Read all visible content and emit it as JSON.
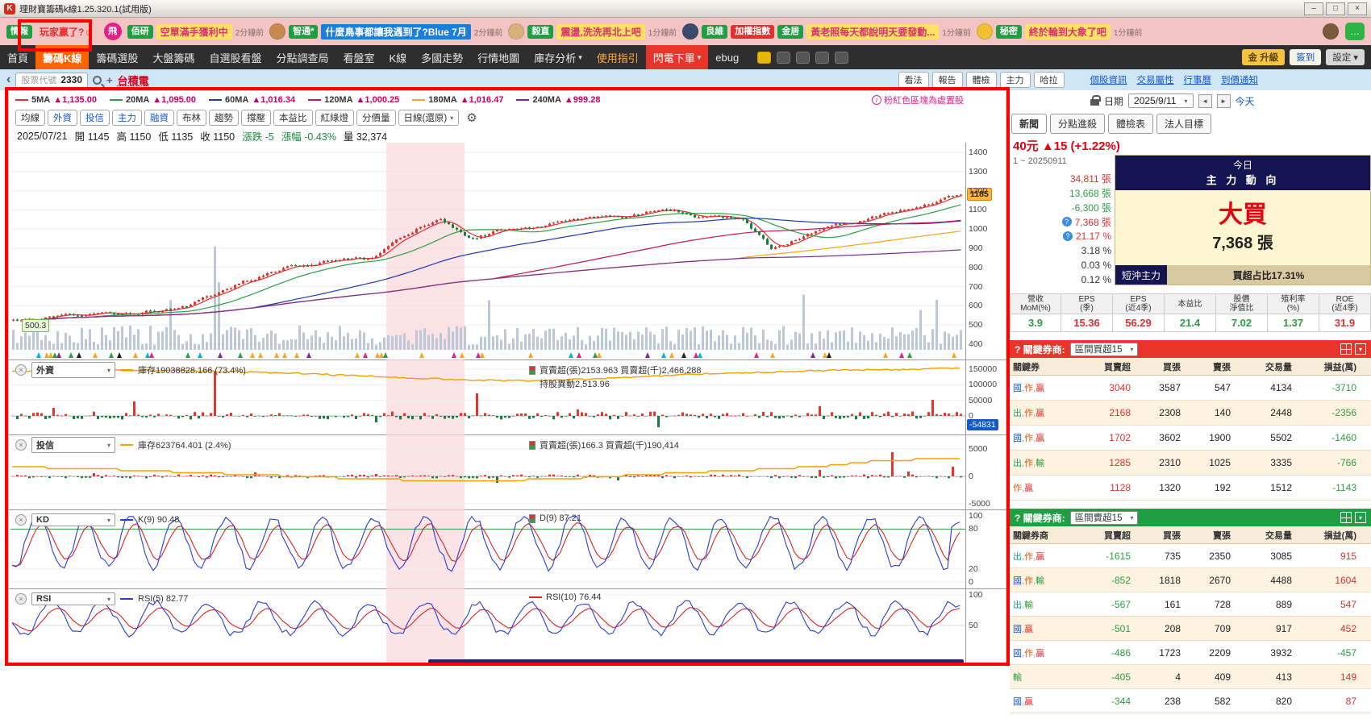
{
  "window": {
    "title": "理財寶籌碼k線1.25.320.1(試用版)",
    "logo": "K"
  },
  "icons": {
    "minimize": "–",
    "maximize": "□",
    "close": "×",
    "caret": "▾",
    "left_arrow": "◄",
    "right_arrow": "►",
    "gear": "⚙",
    "back": "‹",
    "plus": "+",
    "question": "?",
    "info": "i",
    "panel_close": "×",
    "chat": "…"
  },
  "marquee": {
    "items": [
      {
        "badges": [
          {
            "t": "情報",
            "bg": "#1e9e40",
            "fg": "#ffffff"
          }
        ],
        "text": "玩家贏了?☺",
        "style": "red",
        "time": "",
        "avatar": ""
      },
      {
        "badges": [
          {
            "t": "飛",
            "bg": "#e0218a",
            "fg": "#ffffff",
            "round": true
          }
        ],
        "text": "",
        "style": "",
        "time": "",
        "avatar": ""
      },
      {
        "badges": [
          {
            "t": "佰研",
            "bg": "#1e9e40",
            "fg": "#ffffff"
          }
        ],
        "text": "空單滿手獲利中",
        "style": "yellow",
        "time": "2分鐘前",
        "avatar": ""
      },
      {
        "badges": [
          {
            "t": "智通*",
            "bg": "#1e9e40",
            "fg": "#ffffff"
          }
        ],
        "text": "什麼鳥事都讓我遇到了?Blue 7月",
        "style": "blue",
        "time": "2分鐘前",
        "avatar": "#c98a50"
      },
      {
        "badges": [
          {
            "t": "毅直",
            "bg": "#1e9e40",
            "fg": "#ffffff"
          }
        ],
        "text": "震盪,洗洗再北上吧",
        "style": "yellow",
        "time": "1分鐘前",
        "avatar": "#d8b27a"
      },
      {
        "badges": [
          {
            "t": "良維",
            "bg": "#1e9e40",
            "fg": "#ffffff"
          },
          {
            "t": "加權指數",
            "bg": "#e03131",
            "fg": "#ffffff"
          },
          {
            "t": "金居",
            "bg": "#1e9e40",
            "fg": "#ffffff"
          }
        ],
        "text": "黃老照每天都說明天要發動...",
        "style": "yellow",
        "time": "1分鐘前",
        "avatar": "#3a4a6a"
      },
      {
        "badges": [
          {
            "t": "秘密",
            "bg": "#1e9e40",
            "fg": "#ffffff"
          }
        ],
        "text": "終於輪到大象了吧",
        "style": "yellow",
        "time": "1分鐘前",
        "avatar": "#f0c030"
      }
    ]
  },
  "nav": {
    "items": [
      {
        "label": "首頁"
      },
      {
        "label": "籌碼K線",
        "active": true
      },
      {
        "label": "籌碼選股"
      },
      {
        "label": "大盤籌碼"
      },
      {
        "label": "自選股看盤"
      },
      {
        "label": "分點調查局"
      },
      {
        "label": "看盤室"
      },
      {
        "label": "K線"
      },
      {
        "label": "多國走勢"
      },
      {
        "label": "行情地圖"
      },
      {
        "label": "庫存分析",
        "caret": true
      },
      {
        "label": "使用指引",
        "accent": true
      },
      {
        "label": "閃電下單",
        "hot": true,
        "caret": true
      },
      {
        "label": "ebug"
      }
    ],
    "chips": [
      {
        "label": "金 升級",
        "style": "gold"
      },
      {
        "label": "簽到",
        "style": "light"
      },
      {
        "label": "設定",
        "style": "gray",
        "caret": true
      }
    ]
  },
  "subbar": {
    "stock_code_label": "股票代號",
    "stock_code": "2330",
    "stock_name": "台積電",
    "chips": [
      "看法",
      "報告",
      "體檢",
      "主力",
      "哈拉"
    ],
    "links": [
      "個股資訊",
      "交易屬性",
      "行事曆",
      "到價通知"
    ]
  },
  "chart": {
    "ma_legend": [
      {
        "name": "5MA",
        "value": "▲1,135.00",
        "color": "#e03131"
      },
      {
        "name": "20MA",
        "value": "▲1,095.00",
        "color": "#2f9e44"
      },
      {
        "name": "60MA",
        "value": "▲1,016.34",
        "color": "#1f3ab0"
      },
      {
        "name": "120MA",
        "value": "▲1,000.25",
        "color": "#c2185b"
      },
      {
        "name": "180MA",
        "value": "▲1,016.47",
        "color": "#f5a623"
      },
      {
        "name": "240MA",
        "value": "▲999.28",
        "color": "#7b2d8e"
      }
    ],
    "note": "粉紅色區塊為處置股",
    "toolbar": [
      "均線",
      "外資",
      "投信",
      "主力",
      "融資",
      "布林",
      "趨勢",
      "撐壓",
      "本益比",
      "紅綠燈",
      "分價量"
    ],
    "toolbar_blue": [
      "外資",
      "投信",
      "主力",
      "融資"
    ],
    "period": "日線(還原)",
    "ohlc": {
      "date": "2025/07/21",
      "open_label": "開",
      "open": "1145",
      "high_label": "高",
      "high": "1150",
      "low_label": "低",
      "low": "1135",
      "close_label": "收",
      "close": "1150",
      "chg_label": "漲跌",
      "chg": "-5",
      "pct_label": "漲幅",
      "pct": "-0.43%",
      "vol_label": "量",
      "vol": "32,374"
    },
    "price_axis": [
      "1400",
      "1300",
      "1200",
      "1100",
      "1000",
      "900",
      "800",
      "700",
      "600",
      "500",
      "400"
    ],
    "high_marker": "1185",
    "low_marker": "500.3",
    "panels": {
      "fi": {
        "name": "外資",
        "legend_line": "庫存19038828.166 (73.4%)",
        "legend_bar": "買賣超(張)2153.963 買賣超(千)2,466,288",
        "legend_extra": "持股異動2,513.96",
        "axis": [
          "150000",
          "100000",
          "50000",
          "0"
        ],
        "marker": "-54831"
      },
      "it": {
        "name": "投信",
        "legend_line": "庫存623764.401 (2.4%)",
        "legend_bar": "買賣超(張)166.3 買賣超(千)190,414",
        "axis": [
          "5000",
          "0",
          "-5000"
        ]
      },
      "kd": {
        "name": "KD",
        "legend_k": "K(9) 90.48",
        "legend_d": "D(9) 87.21",
        "axis": [
          "100",
          "80",
          "20",
          "0"
        ]
      },
      "rsi": {
        "name": "RSI",
        "legend_1": "RSI(5) 82.77",
        "legend_2": "RSI(10) 76.44",
        "axis": [
          "100",
          "50"
        ]
      }
    }
  },
  "right_panel": {
    "date_label": "日期",
    "date_value": "2025/9/11",
    "today": "今天",
    "tabs": [
      "新聞",
      "分點進殺",
      "體檢表",
      "法人目標"
    ],
    "price_line": "40元 ▲15 (+1.22%)",
    "range": "1 ~ 20250911",
    "stats": [
      {
        "v": "34,811 張",
        "c": "#e03131",
        "q": false
      },
      {
        "v": "13,668 張",
        "c": "#2f9e44",
        "q": false
      },
      {
        "v": "-6,300 張",
        "c": "#2f9e44",
        "q": false
      },
      {
        "v": "7,368 張",
        "c": "#e03131",
        "q": true
      },
      {
        "v": "21.17 %",
        "c": "#e03131",
        "q": true
      },
      {
        "v": "3.18 %",
        "c": "#333333",
        "q": false
      },
      {
        "v": "0.03 %",
        "c": "#333333",
        "q": false
      },
      {
        "v": "0.12 %",
        "c": "#333333",
        "q": false
      }
    ],
    "flow": {
      "title1": "今日",
      "title2": "主 力 動 向",
      "action": "大買",
      "amount": "7,368 張",
      "short_label": "短沖主力",
      "short_value": "買超占比17.31%"
    },
    "metrics": {
      "headers": [
        "營收\nMoM(%)",
        "EPS\n(季)",
        "EPS\n(近4季)",
        "本益比",
        "股價\n淨值比",
        "殖利率\n(%)",
        "ROE\n(近4季)"
      ],
      "values": [
        {
          "t": "3.9",
          "c": "#2f9e44"
        },
        {
          "t": "15.36",
          "c": "#e03131"
        },
        {
          "t": "56.29",
          "c": "#e03131"
        },
        {
          "t": "21.4",
          "c": "#2f9e44"
        },
        {
          "t": "7.02",
          "c": "#2f9e44"
        },
        {
          "t": "1.37",
          "c": "#2f9e44"
        },
        {
          "t": "31.9",
          "c": "#e03131"
        }
      ]
    },
    "buy_section": {
      "label": "? 關鍵券商:",
      "select": "區間買超15",
      "headers": [
        "關鍵券",
        "買賣超",
        "買張",
        "賣張",
        "交易量",
        "損益(萬)"
      ],
      "rows": [
        [
          "國,作,贏",
          "3040",
          "3587",
          "547",
          "4134",
          "-3710"
        ],
        [
          "出,作,贏",
          "2168",
          "2308",
          "140",
          "2448",
          "-2356"
        ],
        [
          "國,作,贏",
          "1702",
          "3602",
          "1900",
          "5502",
          "-1460"
        ],
        [
          "出,作,輸",
          "1285",
          "2310",
          "1025",
          "3335",
          "-766"
        ],
        [
          "作,贏",
          "1128",
          "1320",
          "192",
          "1512",
          "-1143"
        ]
      ]
    },
    "sell_section": {
      "label": "? 關鍵券商:",
      "select": "區間賣超15",
      "headers": [
        "關鍵券商",
        "買賣超",
        "買張",
        "賣張",
        "交易量",
        "損益(萬)"
      ],
      "rows": [
        [
          "出,作,贏",
          "-1615",
          "735",
          "2350",
          "3085",
          "915"
        ],
        [
          "國,作,輸",
          "-852",
          "1818",
          "2670",
          "4488",
          "1604"
        ],
        [
          "出,輸",
          "-567",
          "161",
          "728",
          "889",
          "547"
        ],
        [
          "國,贏",
          "-501",
          "208",
          "709",
          "917",
          "452"
        ],
        [
          "國,作,贏",
          "-486",
          "1723",
          "2209",
          "3932",
          "-457"
        ],
        [
          "輸",
          "-405",
          "4",
          "409",
          "413",
          "149"
        ],
        [
          "國,贏",
          "-344",
          "238",
          "582",
          "820",
          "87"
        ]
      ]
    }
  },
  "chart_data": {
    "type": "candlestick",
    "symbol": "2330 台積電",
    "period": "日線(還原)",
    "selected_bar": {
      "date": "2025/07/21",
      "open": 1145,
      "high": 1150,
      "low": 1135,
      "close": 1150,
      "change": -5,
      "change_pct": -0.43,
      "volume": 32374
    },
    "moving_averages": {
      "MA5": 1135.0,
      "MA20": 1095.0,
      "MA60": 1016.34,
      "MA120": 1000.25,
      "MA180": 1016.47,
      "MA240": 999.28
    },
    "price_axis_range": [
      400,
      1400
    ],
    "price_high_marker": 1185,
    "price_low_marker": 500.3,
    "trend_anchors": [
      [
        0,
        520
      ],
      [
        0.1,
        555
      ],
      [
        0.18,
        590
      ],
      [
        0.24,
        720
      ],
      [
        0.28,
        790
      ],
      [
        0.33,
        830
      ],
      [
        0.38,
        845
      ],
      [
        0.42,
        980
      ],
      [
        0.45,
        1065
      ],
      [
        0.48,
        945
      ],
      [
        0.52,
        1000
      ],
      [
        0.58,
        1030
      ],
      [
        0.64,
        1070
      ],
      [
        0.69,
        1100
      ],
      [
        0.73,
        1055
      ],
      [
        0.77,
        1060
      ],
      [
        0.8,
        885
      ],
      [
        0.84,
        985
      ],
      [
        0.88,
        1040
      ],
      [
        0.93,
        1085
      ],
      [
        0.97,
        1145
      ],
      [
        1,
        1185
      ]
    ],
    "indicators": {
      "foreign": {
        "inventory": 19038828.166,
        "inventory_pct": 73.4,
        "net_buy_lots": 2153.963,
        "net_buy_thousand": 2466288,
        "holding_change": 2513.96,
        "axis": [
          150000,
          100000,
          50000,
          0
        ],
        "current": -54831
      },
      "trust": {
        "inventory": 623764.401,
        "inventory_pct": 2.4,
        "net_buy_lots": 166.3,
        "net_buy_thousand": 190414,
        "axis": [
          5000,
          0,
          -5000
        ]
      },
      "kd": {
        "k9": 90.48,
        "d9": 87.21,
        "axis": [
          100,
          80,
          20,
          0
        ]
      },
      "rsi": {
        "rsi5": 82.77,
        "rsi10": 76.44,
        "axis": [
          100,
          50
        ]
      }
    }
  }
}
